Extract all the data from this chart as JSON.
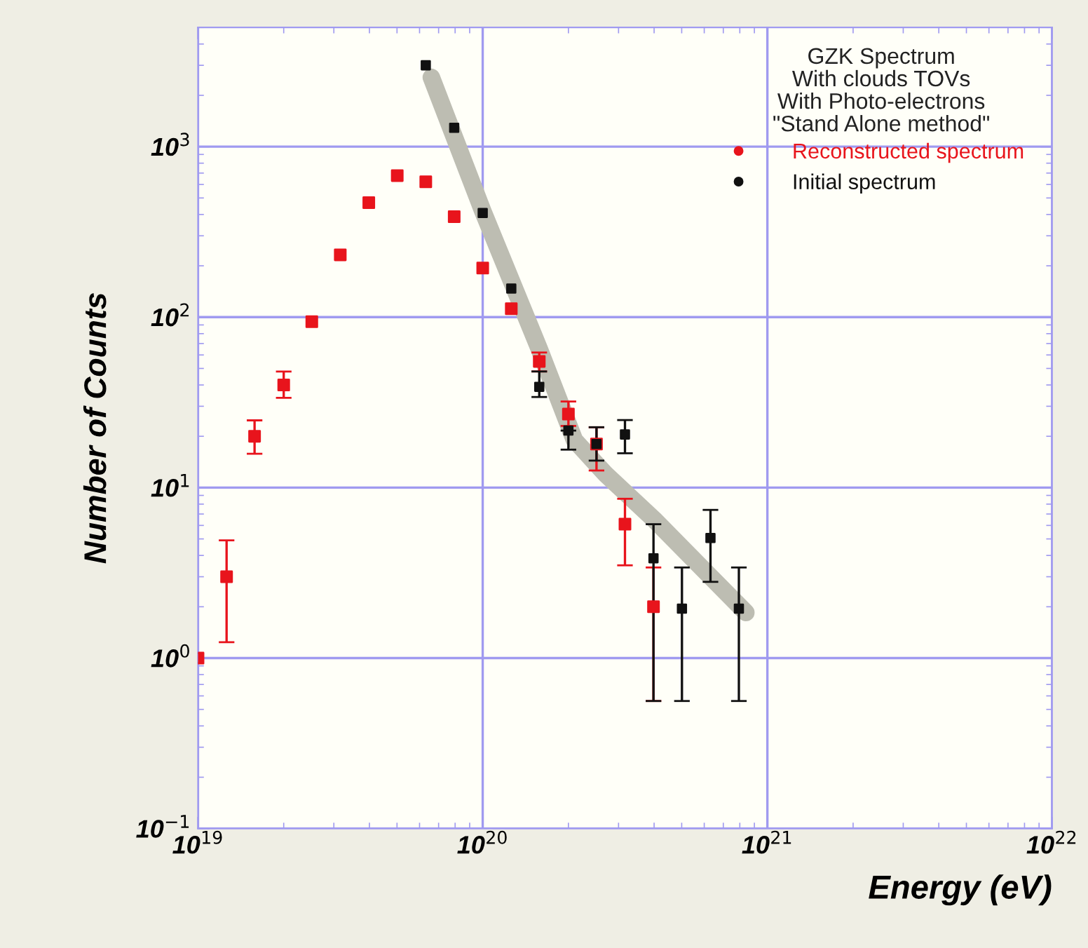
{
  "chart_data": {
    "type": "scatter",
    "xlabel": "Energy (eV)",
    "ylabel": "Number of Counts",
    "log": "xy",
    "grid": true,
    "legend": "top right",
    "marker": "square",
    "annotations": [
      "GZK Spectrum\nWith clouds TOVs\nWith Photo-electrons\n\"Stand Alone method\""
    ],
    "xlim": [
      1e+19,
      1e+22
    ],
    "xticks": [
      {
        "value": 1e+19,
        "label": "10$^{19}$"
      },
      {
        "value": 1e+20,
        "label": "10$^{20}$"
      },
      {
        "value": 1e+21,
        "label": "10$^{21}$"
      },
      {
        "value": 1e+22,
        "label": "10$^{22}$"
      }
    ],
    "ylim": [
      0.1,
      5000
    ],
    "yticks": [
      {
        "value": 0.1,
        "label": "10$^{−1}$"
      },
      {
        "value": 1,
        "label": "10$^{0}$"
      },
      {
        "value": 10,
        "label": "10$^{1}$"
      },
      {
        "value": 100,
        "label": "10$^{2}$"
      },
      {
        "value": 1000,
        "label": "10$^{3}$"
      }
    ],
    "series": [
      {
        "type": "line",
        "marker": "none",
        "color": "#bdbdb2",
        "x": [
          6.6e+19,
          1e+20,
          1.58e+20,
          2.1e+20,
          2.7e+20,
          4e+20,
          8.4e+20
        ],
        "values": [
          2550,
          420,
          65,
          19,
          12,
          6.5,
          1.85
        ]
      },
      {
        "name": "Reconstructed spectrum",
        "color": "#e8141c",
        "x": [
          1e+19,
          1.26e+19,
          1.58e+19,
          2e+19,
          2.51e+19,
          3.16e+19,
          3.98e+19,
          5.01e+19,
          6.31e+19,
          7.94e+19,
          1e+20,
          1.26e+20,
          1.58e+20,
          2e+20,
          2.51e+20,
          3.16e+20,
          3.98e+20
        ],
        "values": [
          1,
          3,
          20,
          40,
          94,
          232,
          469,
          676,
          622,
          388,
          194,
          112,
          55,
          27,
          18,
          6.1,
          2
        ],
        "errors": [
          null,
          [
            1.24,
            4.9
          ],
          [
            15.8,
            24.8
          ],
          [
            33.6,
            48
          ],
          null,
          null,
          null,
          null,
          null,
          null,
          null,
          null,
          [
            48,
            62
          ],
          [
            23,
            32
          ],
          [
            12.6,
            22.6
          ],
          [
            3.5,
            8.6
          ],
          [
            0.56,
            3.4
          ]
        ]
      },
      {
        "name": "Initial spectrum",
        "color": "#111111",
        "x": [
          6.31e+19,
          7.94e+19,
          1e+20,
          1.26e+20,
          1.58e+20,
          2e+20,
          2.51e+20,
          3.16e+20,
          3.98e+20,
          5.01e+20,
          6.31e+20,
          7.94e+20
        ],
        "values": [
          3000,
          1290,
          408,
          147,
          39,
          21.6,
          18,
          20.5,
          3.85,
          1.95,
          5.06,
          1.95
        ],
        "errors": [
          null,
          null,
          null,
          null,
          [
            34,
            48
          ],
          [
            16.7,
            21.6
          ],
          [
            14.4,
            22.6
          ],
          [
            15.9,
            24.9
          ],
          [
            0.56,
            6.1
          ],
          [
            0.56,
            3.4
          ],
          [
            2.8,
            7.4
          ],
          [
            0.56,
            3.4
          ]
        ]
      }
    ]
  }
}
